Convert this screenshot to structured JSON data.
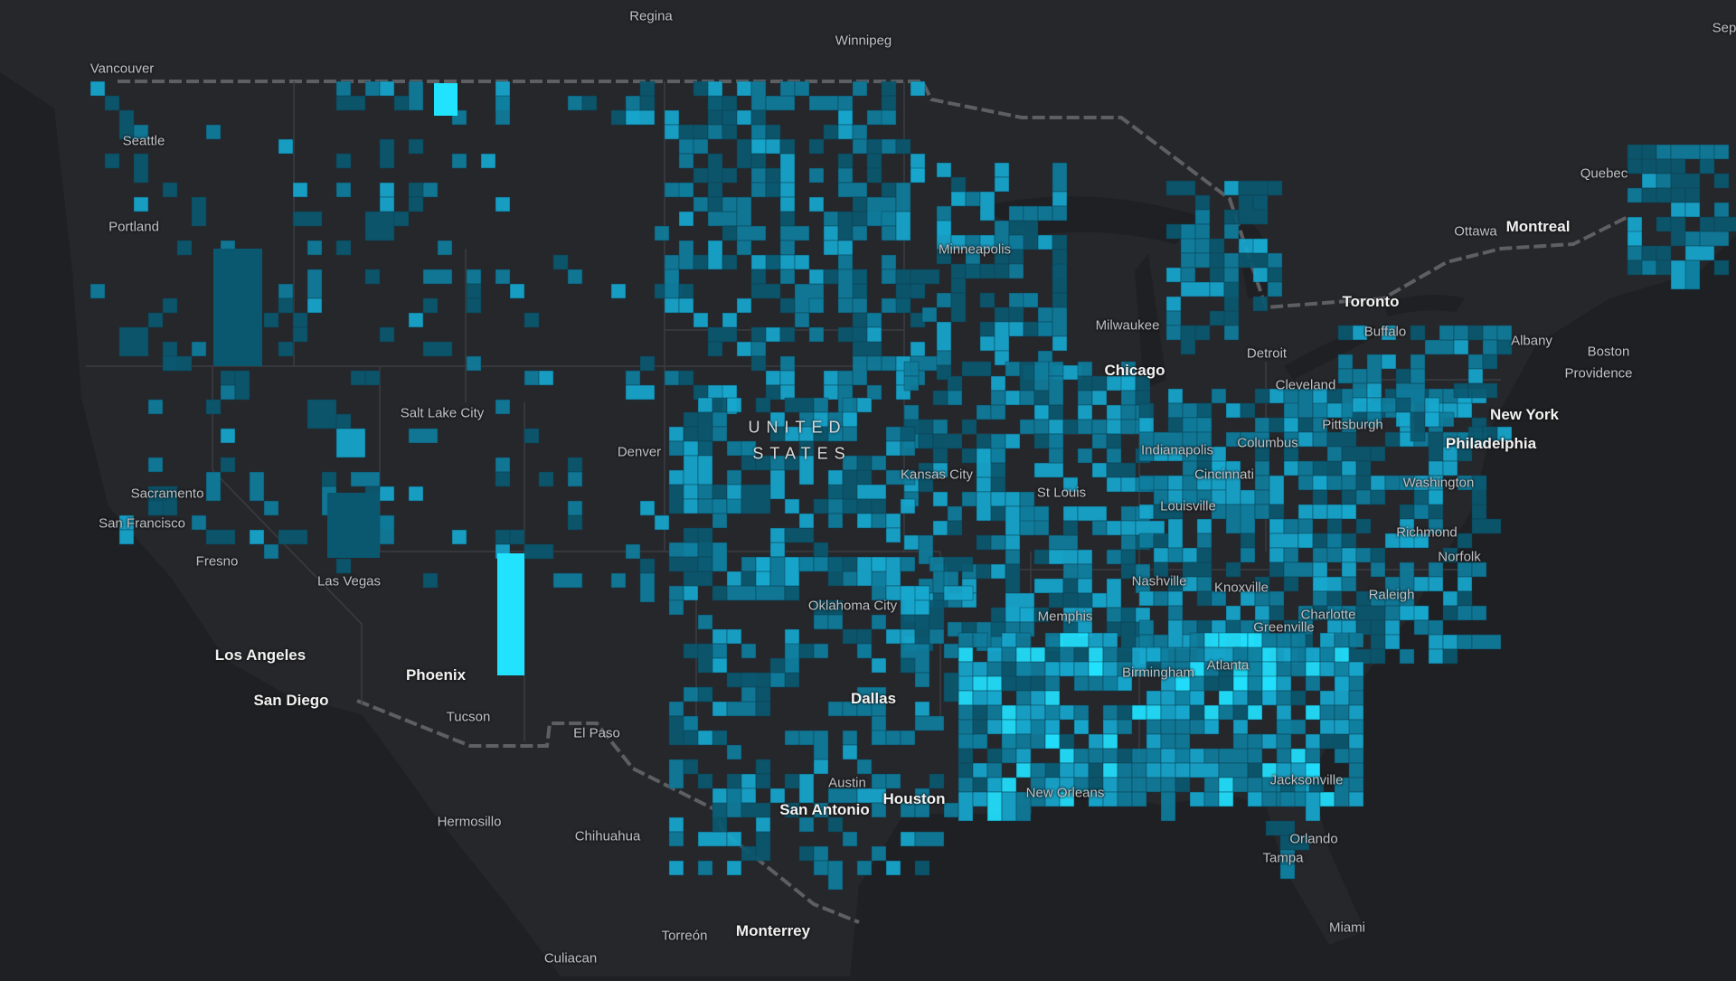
{
  "map": {
    "country_label_line1": "UNITED",
    "country_label_line2": "STATES",
    "cities": [
      {
        "name": "Regina",
        "major": false
      },
      {
        "name": "Winnipeg",
        "major": false
      },
      {
        "name": "Vancouver",
        "major": false
      },
      {
        "name": "Seattle",
        "major": false
      },
      {
        "name": "Portland",
        "major": false
      },
      {
        "name": "Sep",
        "major": false
      },
      {
        "name": "Quebec",
        "major": false
      },
      {
        "name": "Ottawa",
        "major": false
      },
      {
        "name": "Montreal",
        "major": true
      },
      {
        "name": "Minneapolis",
        "major": false
      },
      {
        "name": "Toronto",
        "major": true
      },
      {
        "name": "Buffalo",
        "major": false
      },
      {
        "name": "Milwaukee",
        "major": false
      },
      {
        "name": "Albany",
        "major": false
      },
      {
        "name": "Boston",
        "major": false
      },
      {
        "name": "Providence",
        "major": false
      },
      {
        "name": "Detroit",
        "major": false
      },
      {
        "name": "Chicago",
        "major": true
      },
      {
        "name": "Cleveland",
        "major": false
      },
      {
        "name": "Salt Lake City",
        "major": false
      },
      {
        "name": "New York",
        "major": true
      },
      {
        "name": "Pittsburgh",
        "major": false
      },
      {
        "name": "Denver",
        "major": false
      },
      {
        "name": "Columbus",
        "major": false
      },
      {
        "name": "Indianapolis",
        "major": false
      },
      {
        "name": "Philadelphia",
        "major": true
      },
      {
        "name": "Cincinnati",
        "major": false
      },
      {
        "name": "Kansas City",
        "major": false
      },
      {
        "name": "Washington",
        "major": false
      },
      {
        "name": "Sacramento",
        "major": false
      },
      {
        "name": "St Louis",
        "major": false
      },
      {
        "name": "Louisville",
        "major": false
      },
      {
        "name": "San Francisco",
        "major": false
      },
      {
        "name": "Richmond",
        "major": false
      },
      {
        "name": "Fresno",
        "major": false
      },
      {
        "name": "Norfolk",
        "major": false
      },
      {
        "name": "Nashville",
        "major": false
      },
      {
        "name": "Las Vegas",
        "major": false
      },
      {
        "name": "Knoxville",
        "major": false
      },
      {
        "name": "Raleigh",
        "major": false
      },
      {
        "name": "Oklahoma City",
        "major": false
      },
      {
        "name": "Charlotte",
        "major": false
      },
      {
        "name": "Memphis",
        "major": false
      },
      {
        "name": "Greenville",
        "major": false
      },
      {
        "name": "Los Angeles",
        "major": true
      },
      {
        "name": "Atlanta",
        "major": false
      },
      {
        "name": "Birmingham",
        "major": false
      },
      {
        "name": "Phoenix",
        "major": true
      },
      {
        "name": "Dallas",
        "major": true
      },
      {
        "name": "San Diego",
        "major": true
      },
      {
        "name": "Tucson",
        "major": false
      },
      {
        "name": "El Paso",
        "major": false
      },
      {
        "name": "Austin",
        "major": false
      },
      {
        "name": "Jacksonville",
        "major": false
      },
      {
        "name": "New Orleans",
        "major": false
      },
      {
        "name": "Houston",
        "major": true
      },
      {
        "name": "San Antonio",
        "major": true
      },
      {
        "name": "Hermosillo",
        "major": false
      },
      {
        "name": "Chihuahua",
        "major": false
      },
      {
        "name": "Orlando",
        "major": false
      },
      {
        "name": "Tampa",
        "major": false
      },
      {
        "name": "Miami",
        "major": false
      },
      {
        "name": "Torreón",
        "major": false
      },
      {
        "name": "Monterrey",
        "major": true
      },
      {
        "name": "Culiacan",
        "major": false
      }
    ],
    "colors": {
      "background": "#1f2023",
      "land": "#26272b",
      "border": "#55575c",
      "class_low": "#0a5870",
      "class_mid": "#0f7d9d",
      "class_high": "#17a8cf",
      "class_max": "#21e2ff"
    }
  }
}
